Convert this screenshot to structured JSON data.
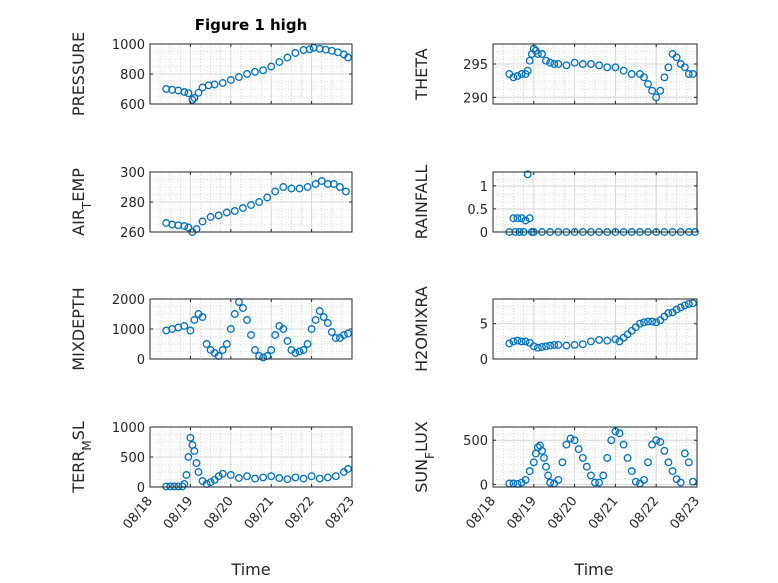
{
  "figure_title": "Figure 1 high",
  "marker_color": "#0072BD",
  "chart_data": [
    {
      "type": "scatter",
      "ylabel": "PRESSURE",
      "ylim": [
        600,
        1000
      ],
      "yticks": [
        "600",
        "800",
        "1000"
      ],
      "ytick_values": [
        600,
        800,
        1000
      ],
      "xlim": [
        0,
        5
      ],
      "x": [
        0.4,
        0.55,
        0.7,
        0.85,
        0.95,
        1.05,
        1.1,
        1.2,
        1.3,
        1.45,
        1.6,
        1.8,
        2.0,
        2.2,
        2.4,
        2.6,
        2.8,
        3.0,
        3.2,
        3.4,
        3.6,
        3.8,
        3.95,
        4.05,
        4.2,
        4.35,
        4.5,
        4.65,
        4.8,
        4.9
      ],
      "y": [
        700,
        695,
        690,
        680,
        672,
        628,
        640,
        675,
        710,
        725,
        730,
        740,
        760,
        780,
        800,
        815,
        825,
        850,
        880,
        910,
        940,
        960,
        965,
        975,
        968,
        962,
        955,
        945,
        930,
        910
      ]
    },
    {
      "type": "scatter",
      "ylabel": "THETA",
      "ylim": [
        289,
        298
      ],
      "yticks": [
        "290",
        "295"
      ],
      "ytick_values": [
        290,
        295
      ],
      "xlim": [
        0,
        5
      ],
      "x": [
        0.4,
        0.5,
        0.6,
        0.7,
        0.8,
        0.85,
        0.9,
        0.95,
        1.0,
        1.05,
        1.1,
        1.2,
        1.3,
        1.4,
        1.5,
        1.6,
        1.8,
        2.0,
        2.2,
        2.4,
        2.6,
        2.8,
        3.0,
        3.2,
        3.4,
        3.6,
        3.7,
        3.8,
        3.9,
        4.0,
        4.1,
        4.2,
        4.3,
        4.4,
        4.5,
        4.6,
        4.7,
        4.8,
        4.9
      ],
      "y": [
        293.5,
        293.0,
        293.2,
        293.5,
        293.5,
        294,
        295.5,
        296.5,
        297.3,
        297,
        296.5,
        296.5,
        295.5,
        295.2,
        295,
        295,
        294.8,
        295.2,
        295,
        295,
        294.8,
        294.5,
        294.5,
        294,
        293.5,
        293.5,
        293,
        292,
        291,
        290,
        291,
        293,
        294.5,
        296.5,
        296,
        295,
        294.5,
        293.5,
        293.5
      ]
    },
    {
      "type": "scatter",
      "ylabel": "AIR_TEMP",
      "ylim": [
        260,
        300
      ],
      "yticks": [
        "260",
        "280",
        "300"
      ],
      "ytick_values": [
        260,
        280,
        300
      ],
      "xlim": [
        0,
        5
      ],
      "x": [
        0.4,
        0.55,
        0.7,
        0.85,
        0.95,
        1.05,
        1.15,
        1.3,
        1.5,
        1.7,
        1.9,
        2.1,
        2.3,
        2.5,
        2.7,
        2.9,
        3.1,
        3.3,
        3.5,
        3.7,
        3.9,
        4.1,
        4.25,
        4.4,
        4.55,
        4.7,
        4.85
      ],
      "y": [
        266,
        265,
        264.5,
        264,
        263,
        260,
        262,
        267,
        270,
        271,
        273,
        274,
        276,
        278,
        280,
        283,
        287,
        290,
        289,
        289,
        290,
        292,
        294,
        292,
        292,
        290,
        287
      ]
    },
    {
      "type": "scatter",
      "ylabel": "RAINFALL",
      "ylim": [
        0,
        1.3
      ],
      "yticks": [
        "0",
        "0.5",
        "1"
      ],
      "ytick_values": [
        0,
        0.5,
        1
      ],
      "xlim": [
        0,
        5
      ],
      "x": [
        0.4,
        0.5,
        0.55,
        0.6,
        0.65,
        0.7,
        0.75,
        0.8,
        0.85,
        0.9,
        0.95,
        1.0,
        1.2,
        1.4,
        1.6,
        1.8,
        2.0,
        2.2,
        2.4,
        2.6,
        2.8,
        3.0,
        3.2,
        3.4,
        3.6,
        3.8,
        4.0,
        4.2,
        4.4,
        4.6,
        4.8,
        4.95
      ],
      "y": [
        0,
        0.3,
        0,
        0.3,
        0,
        0.3,
        0,
        0.25,
        1.25,
        0.3,
        0,
        0,
        0,
        0,
        0,
        0,
        0,
        0,
        0,
        0,
        0,
        0,
        0,
        0,
        0,
        0,
        0,
        0,
        0,
        0,
        0,
        0
      ]
    },
    {
      "type": "scatter",
      "ylabel": "MIXDEPTH",
      "ylim": [
        0,
        2000
      ],
      "yticks": [
        "0",
        "1000",
        "2000"
      ],
      "ytick_values": [
        0,
        1000,
        2000
      ],
      "xlim": [
        0,
        5
      ],
      "x": [
        0.4,
        0.55,
        0.7,
        0.85,
        1.0,
        1.1,
        1.2,
        1.3,
        1.4,
        1.5,
        1.6,
        1.7,
        1.8,
        1.9,
        2.0,
        2.1,
        2.2,
        2.3,
        2.4,
        2.5,
        2.6,
        2.7,
        2.8,
        2.9,
        3.0,
        3.1,
        3.2,
        3.3,
        3.4,
        3.5,
        3.6,
        3.7,
        3.8,
        3.9,
        4.0,
        4.1,
        4.2,
        4.3,
        4.4,
        4.5,
        4.6,
        4.7,
        4.8,
        4.9
      ],
      "y": [
        950,
        1000,
        1050,
        1100,
        950,
        1300,
        1500,
        1400,
        500,
        300,
        200,
        100,
        300,
        500,
        1000,
        1500,
        1900,
        1700,
        1300,
        800,
        300,
        100,
        50,
        100,
        300,
        800,
        1100,
        1000,
        600,
        300,
        200,
        250,
        300,
        500,
        1000,
        1300,
        1600,
        1400,
        1200,
        900,
        700,
        700,
        800,
        850
      ]
    },
    {
      "type": "scatter",
      "ylabel": "H2OMIXRA",
      "ylim": [
        0,
        8.5
      ],
      "yticks": [
        "0",
        "5"
      ],
      "ytick_values": [
        0,
        5
      ],
      "xlim": [
        0,
        5
      ],
      "x": [
        0.4,
        0.5,
        0.6,
        0.7,
        0.8,
        0.9,
        1.0,
        1.1,
        1.2,
        1.3,
        1.4,
        1.5,
        1.6,
        1.8,
        2.0,
        2.2,
        2.4,
        2.6,
        2.8,
        3.0,
        3.1,
        3.2,
        3.3,
        3.4,
        3.5,
        3.6,
        3.7,
        3.8,
        3.9,
        4.0,
        4.1,
        4.2,
        4.3,
        4.4,
        4.5,
        4.6,
        4.7,
        4.8,
        4.9
      ],
      "y": [
        2.2,
        2.5,
        2.6,
        2.5,
        2.5,
        2.3,
        1.8,
        1.6,
        1.7,
        1.8,
        1.9,
        2.0,
        2.0,
        1.9,
        2.0,
        2.1,
        2.5,
        2.7,
        2.6,
        2.8,
        2.5,
        3.0,
        3.5,
        4.0,
        4.5,
        5.0,
        5.2,
        5.3,
        5.3,
        5.2,
        5.5,
        6.0,
        6.5,
        6.6,
        7.0,
        7.3,
        7.6,
        7.8,
        7.9
      ]
    },
    {
      "type": "scatter",
      "ylabel": "TERR_MSL",
      "ylim": [
        0,
        1000
      ],
      "yticks": [
        "0",
        "500",
        "1000"
      ],
      "ytick_values": [
        0,
        500,
        1000
      ],
      "xlim": [
        0,
        5
      ],
      "x": [
        0.4,
        0.5,
        0.6,
        0.7,
        0.8,
        0.85,
        0.9,
        0.95,
        1.0,
        1.05,
        1.1,
        1.15,
        1.2,
        1.3,
        1.4,
        1.5,
        1.6,
        1.7,
        1.8,
        2.0,
        2.2,
        2.4,
        2.6,
        2.8,
        3.0,
        3.2,
        3.4,
        3.6,
        3.8,
        4.0,
        4.2,
        4.4,
        4.6,
        4.8,
        4.9
      ],
      "y": [
        10,
        10,
        10,
        10,
        10,
        50,
        200,
        500,
        820,
        700,
        600,
        400,
        250,
        100,
        50,
        80,
        120,
        180,
        220,
        200,
        150,
        180,
        140,
        160,
        180,
        150,
        130,
        160,
        140,
        180,
        140,
        160,
        180,
        250,
        300
      ]
    },
    {
      "type": "scatter",
      "ylabel": "SUN_FLUX",
      "ylim": [
        -30,
        650
      ],
      "yticks": [
        "0",
        "500"
      ],
      "ytick_values": [
        0,
        500
      ],
      "xlim": [
        0,
        5
      ],
      "x": [
        0.4,
        0.5,
        0.6,
        0.7,
        0.8,
        0.9,
        1.0,
        1.05,
        1.1,
        1.15,
        1.2,
        1.25,
        1.3,
        1.35,
        1.4,
        1.5,
        1.6,
        1.7,
        1.8,
        1.9,
        2.0,
        2.1,
        2.2,
        2.3,
        2.4,
        2.5,
        2.6,
        2.7,
        2.8,
        2.9,
        3.0,
        3.1,
        3.2,
        3.3,
        3.4,
        3.5,
        3.6,
        3.7,
        3.8,
        3.9,
        4.0,
        4.1,
        4.2,
        4.3,
        4.4,
        4.5,
        4.6,
        4.7,
        4.8,
        4.9
      ],
      "y": [
        10,
        10,
        5,
        20,
        50,
        150,
        250,
        350,
        420,
        440,
        380,
        300,
        200,
        100,
        20,
        10,
        50,
        250,
        450,
        520,
        500,
        400,
        300,
        200,
        100,
        20,
        20,
        100,
        300,
        500,
        600,
        580,
        450,
        300,
        150,
        30,
        10,
        50,
        250,
        450,
        500,
        480,
        380,
        250,
        150,
        60,
        20,
        350,
        250,
        30
      ]
    }
  ],
  "x_axis": {
    "ticks": [
      "08/18",
      "08/19",
      "08/20",
      "08/21",
      "08/22",
      "08/23"
    ],
    "label": "Time"
  }
}
